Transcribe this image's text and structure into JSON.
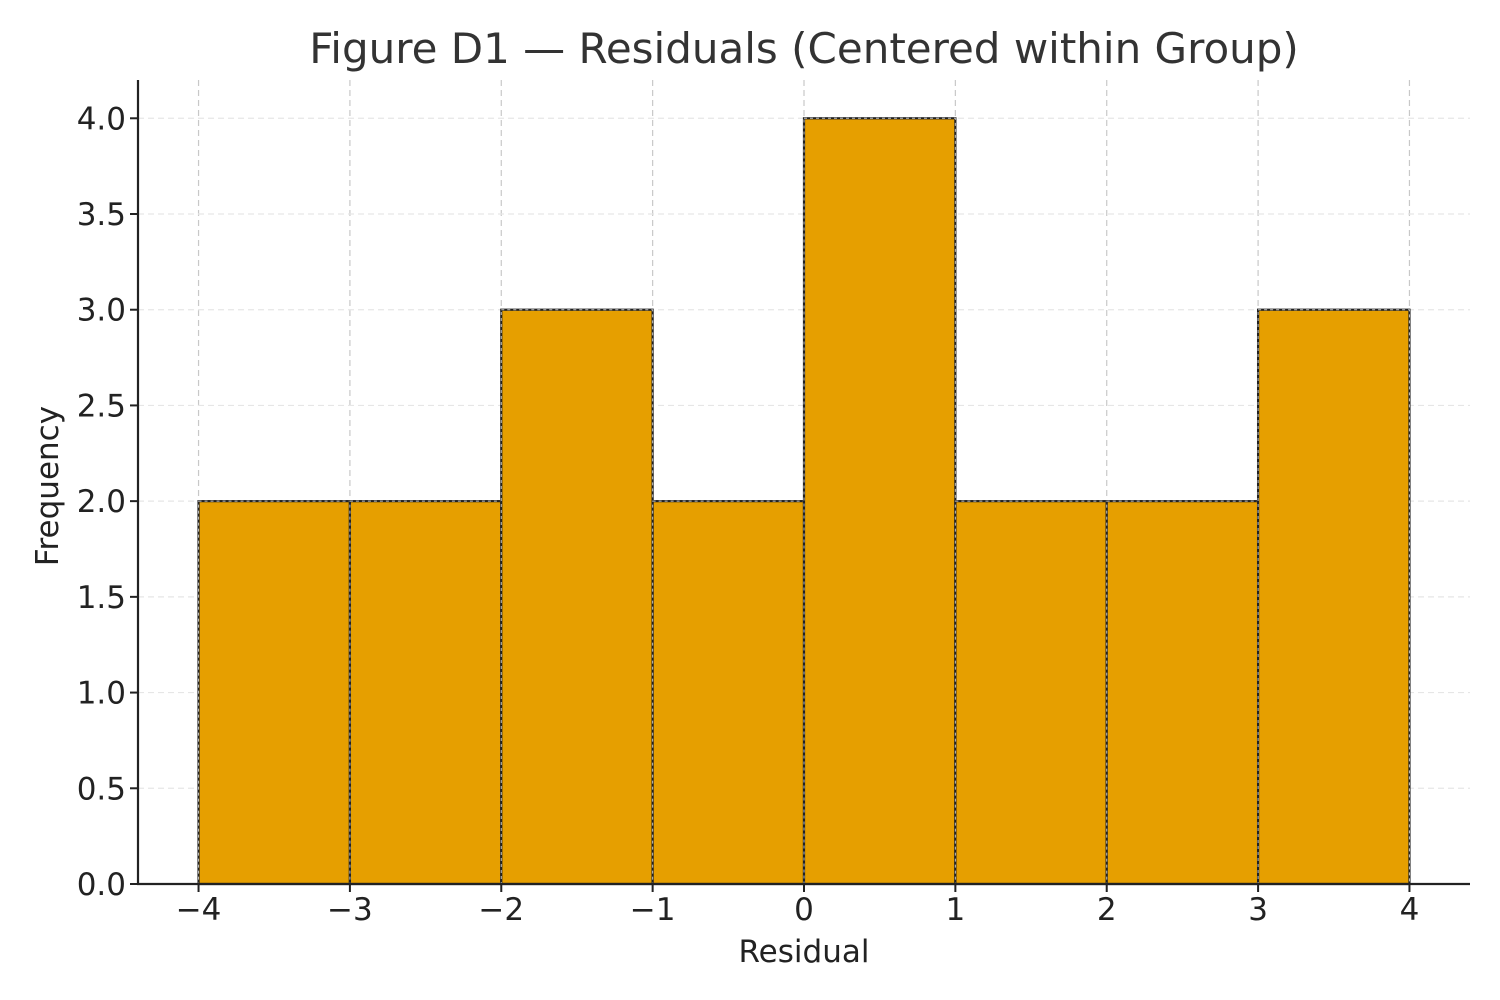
{
  "chart_data": {
    "type": "bar",
    "title": "Figure D1 — Residuals (Centered within Group)",
    "xlabel": "Residual",
    "ylabel": "Frequency",
    "bin_edges": [
      -4,
      -3,
      -2,
      -1,
      0,
      1,
      2,
      3,
      4
    ],
    "values": [
      2,
      2,
      3,
      2,
      4,
      2,
      2,
      3
    ],
    "xlim": [
      -4.4,
      4.4
    ],
    "ylim": [
      0,
      4.2
    ],
    "x_ticks": [
      -4,
      -3,
      -2,
      -1,
      0,
      1,
      2,
      3,
      4
    ],
    "x_tick_labels": [
      "−4",
      "−3",
      "−2",
      "−1",
      "0",
      "1",
      "2",
      "3",
      "4"
    ],
    "y_ticks": [
      0,
      0.5,
      1,
      1.5,
      2,
      2.5,
      3,
      3.5,
      4
    ],
    "y_tick_labels": [
      "0.0",
      "0.5",
      "1.0",
      "1.5",
      "2.0",
      "2.5",
      "3.0",
      "3.5",
      "4.0"
    ],
    "grid": true,
    "bar_color": "#E69F00",
    "edge_color": "#222222"
  }
}
